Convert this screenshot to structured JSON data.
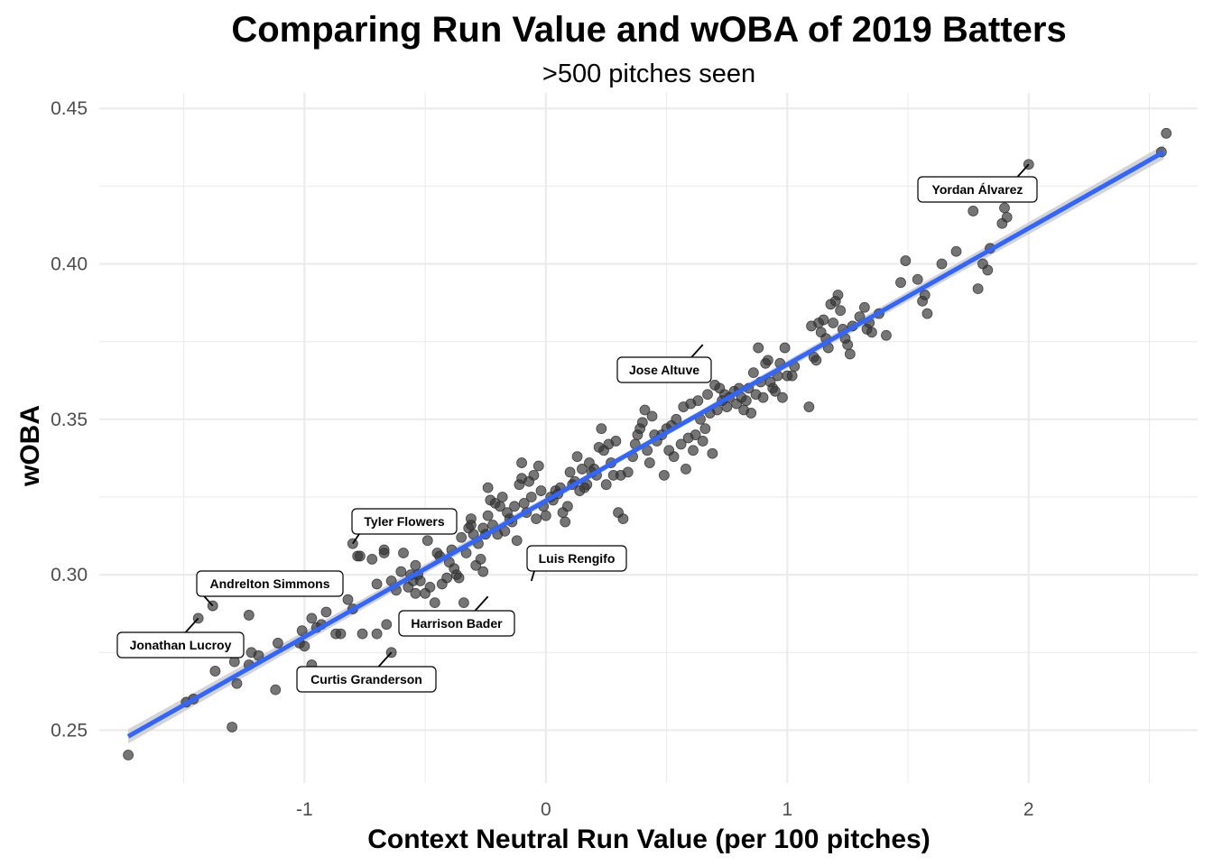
{
  "chart_data": {
    "type": "scatter",
    "title": "Comparing Run Value and wOBA of 2019 Batters",
    "subtitle": ">500 pitches seen",
    "xlabel": "Context Neutral Run Value (per 100 pitches)",
    "ylabel": "wOBA",
    "xlim": [
      -1.85,
      2.7
    ],
    "ylim": [
      0.233,
      0.455
    ],
    "x_ticks": [
      -1,
      0,
      1,
      2
    ],
    "x_tick_labels": [
      "-1",
      "0",
      "1",
      "2"
    ],
    "y_ticks": [
      0.25,
      0.3,
      0.35,
      0.4,
      0.45
    ],
    "y_tick_labels": [
      "0.25",
      "0.30",
      "0.35",
      "0.40",
      "0.45"
    ],
    "grid": true,
    "point_color": "#333333",
    "trend_color": "#3366FF",
    "band_color": "#cccccc",
    "trend": {
      "type": "linear",
      "x": [
        -1.73,
        2.56
      ],
      "y": [
        0.248,
        0.436
      ]
    },
    "points": [
      [
        -1.73,
        0.242
      ],
      [
        -1.49,
        0.259
      ],
      [
        -1.46,
        0.26
      ],
      [
        -1.44,
        0.286
      ],
      [
        -1.38,
        0.29
      ],
      [
        -1.37,
        0.269
      ],
      [
        -1.3,
        0.251
      ],
      [
        -1.29,
        0.272
      ],
      [
        -1.28,
        0.265
      ],
      [
        -1.23,
        0.287
      ],
      [
        -1.23,
        0.271
      ],
      [
        -1.22,
        0.275
      ],
      [
        -1.19,
        0.274
      ],
      [
        -1.12,
        0.263
      ],
      [
        -1.11,
        0.278
      ],
      [
        -1.02,
        0.278
      ],
      [
        -1.01,
        0.282
      ],
      [
        -1.0,
        0.277
      ],
      [
        -0.97,
        0.271
      ],
      [
        -0.97,
        0.286
      ],
      [
        -0.95,
        0.283
      ],
      [
        -0.93,
        0.284
      ],
      [
        -0.91,
        0.288
      ],
      [
        -0.87,
        0.281
      ],
      [
        -0.85,
        0.281
      ],
      [
        -0.82,
        0.292
      ],
      [
        -0.8,
        0.289
      ],
      [
        -0.8,
        0.31
      ],
      [
        -0.78,
        0.306
      ],
      [
        -0.77,
        0.306
      ],
      [
        -0.76,
        0.281
      ],
      [
        -0.72,
        0.305
      ],
      [
        -0.7,
        0.297
      ],
      [
        -0.7,
        0.281
      ],
      [
        -0.67,
        0.308
      ],
      [
        -0.67,
        0.307
      ],
      [
        -0.66,
        0.284
      ],
      [
        -0.64,
        0.298
      ],
      [
        -0.64,
        0.275
      ],
      [
        -0.62,
        0.295
      ],
      [
        -0.6,
        0.301
      ],
      [
        -0.59,
        0.307
      ],
      [
        -0.57,
        0.296
      ],
      [
        -0.56,
        0.3
      ],
      [
        -0.55,
        0.298
      ],
      [
        -0.54,
        0.294
      ],
      [
        -0.54,
        0.303
      ],
      [
        -0.53,
        0.3
      ],
      [
        -0.52,
        0.298
      ],
      [
        -0.5,
        0.294
      ],
      [
        -0.49,
        0.311
      ],
      [
        -0.48,
        0.296
      ],
      [
        -0.46,
        0.291
      ],
      [
        -0.45,
        0.307
      ],
      [
        -0.44,
        0.306
      ],
      [
        -0.43,
        0.297
      ],
      [
        -0.41,
        0.299
      ],
      [
        -0.4,
        0.304
      ],
      [
        -0.39,
        0.308
      ],
      [
        -0.38,
        0.302
      ],
      [
        -0.37,
        0.3
      ],
      [
        -0.36,
        0.299
      ],
      [
        -0.35,
        0.312
      ],
      [
        -0.34,
        0.291
      ],
      [
        -0.33,
        0.307
      ],
      [
        -0.32,
        0.315
      ],
      [
        -0.31,
        0.316
      ],
      [
        -0.31,
        0.318
      ],
      [
        -0.3,
        0.313
      ],
      [
        -0.29,
        0.303
      ],
      [
        -0.28,
        0.31
      ],
      [
        -0.27,
        0.305
      ],
      [
        -0.26,
        0.301
      ],
      [
        -0.26,
        0.315
      ],
      [
        -0.25,
        0.313
      ],
      [
        -0.24,
        0.319
      ],
      [
        -0.24,
        0.328
      ],
      [
        -0.23,
        0.324
      ],
      [
        -0.22,
        0.316
      ],
      [
        -0.21,
        0.323
      ],
      [
        -0.2,
        0.313
      ],
      [
        -0.19,
        0.322
      ],
      [
        -0.18,
        0.325
      ],
      [
        -0.17,
        0.314
      ],
      [
        -0.16,
        0.32
      ],
      [
        -0.15,
        0.318
      ],
      [
        -0.14,
        0.317
      ],
      [
        -0.13,
        0.322
      ],
      [
        -0.12,
        0.311
      ],
      [
        -0.11,
        0.329
      ],
      [
        -0.1,
        0.331
      ],
      [
        -0.1,
        0.336
      ],
      [
        -0.09,
        0.323
      ],
      [
        -0.08,
        0.32
      ],
      [
        -0.07,
        0.33
      ],
      [
        -0.06,
        0.325
      ],
      [
        -0.05,
        0.332
      ],
      [
        -0.04,
        0.318
      ],
      [
        -0.03,
        0.335
      ],
      [
        -0.02,
        0.327
      ],
      [
        -0.01,
        0.322
      ],
      [
        0.0,
        0.319
      ],
      [
        0.02,
        0.325
      ],
      [
        0.03,
        0.324
      ],
      [
        0.04,
        0.327
      ],
      [
        0.05,
        0.326
      ],
      [
        0.06,
        0.328
      ],
      [
        0.07,
        0.32
      ],
      [
        0.08,
        0.317
      ],
      [
        0.09,
        0.322
      ],
      [
        0.1,
        0.333
      ],
      [
        0.11,
        0.329
      ],
      [
        0.12,
        0.33
      ],
      [
        0.13,
        0.338
      ],
      [
        0.14,
        0.327
      ],
      [
        0.15,
        0.334
      ],
      [
        0.16,
        0.328
      ],
      [
        0.17,
        0.329
      ],
      [
        0.18,
        0.336
      ],
      [
        0.19,
        0.333
      ],
      [
        0.2,
        0.334
      ],
      [
        0.21,
        0.332
      ],
      [
        0.22,
        0.341
      ],
      [
        0.23,
        0.347
      ],
      [
        0.24,
        0.34
      ],
      [
        0.25,
        0.329
      ],
      [
        0.26,
        0.342
      ],
      [
        0.27,
        0.336
      ],
      [
        0.28,
        0.332
      ],
      [
        0.29,
        0.343
      ],
      [
        0.3,
        0.32
      ],
      [
        0.31,
        0.332
      ],
      [
        0.32,
        0.318
      ],
      [
        0.34,
        0.333
      ],
      [
        0.36,
        0.338
      ],
      [
        0.37,
        0.342
      ],
      [
        0.38,
        0.345
      ],
      [
        0.39,
        0.347
      ],
      [
        0.4,
        0.349
      ],
      [
        0.41,
        0.353
      ],
      [
        0.42,
        0.34
      ],
      [
        0.43,
        0.336
      ],
      [
        0.44,
        0.351
      ],
      [
        0.45,
        0.345
      ],
      [
        0.46,
        0.343
      ],
      [
        0.48,
        0.345
      ],
      [
        0.49,
        0.332
      ],
      [
        0.5,
        0.347
      ],
      [
        0.51,
        0.34
      ],
      [
        0.52,
        0.348
      ],
      [
        0.53,
        0.338
      ],
      [
        0.54,
        0.35
      ],
      [
        0.56,
        0.342
      ],
      [
        0.57,
        0.354
      ],
      [
        0.58,
        0.334
      ],
      [
        0.59,
        0.344
      ],
      [
        0.6,
        0.355
      ],
      [
        0.61,
        0.34
      ],
      [
        0.62,
        0.345
      ],
      [
        0.63,
        0.356
      ],
      [
        0.64,
        0.35
      ],
      [
        0.65,
        0.343
      ],
      [
        0.66,
        0.347
      ],
      [
        0.67,
        0.358
      ],
      [
        0.68,
        0.352
      ],
      [
        0.69,
        0.339
      ],
      [
        0.7,
        0.361
      ],
      [
        0.71,
        0.353
      ],
      [
        0.72,
        0.36
      ],
      [
        0.73,
        0.356
      ],
      [
        0.74,
        0.358
      ],
      [
        0.75,
        0.354
      ],
      [
        0.76,
        0.357
      ],
      [
        0.78,
        0.359
      ],
      [
        0.79,
        0.355
      ],
      [
        0.8,
        0.36
      ],
      [
        0.81,
        0.357
      ],
      [
        0.82,
        0.353
      ],
      [
        0.83,
        0.356
      ],
      [
        0.84,
        0.36
      ],
      [
        0.85,
        0.352
      ],
      [
        0.86,
        0.365
      ],
      [
        0.87,
        0.358
      ],
      [
        0.88,
        0.373
      ],
      [
        0.89,
        0.362
      ],
      [
        0.9,
        0.357
      ],
      [
        0.91,
        0.368
      ],
      [
        0.92,
        0.369
      ],
      [
        0.93,
        0.362
      ],
      [
        0.94,
        0.36
      ],
      [
        0.95,
        0.359
      ],
      [
        0.96,
        0.364
      ],
      [
        0.97,
        0.368
      ],
      [
        0.98,
        0.357
      ],
      [
        0.99,
        0.373
      ],
      [
        1.0,
        0.364
      ],
      [
        1.02,
        0.364
      ],
      [
        1.03,
        0.367
      ],
      [
        1.09,
        0.354
      ],
      [
        1.1,
        0.38
      ],
      [
        1.11,
        0.37
      ],
      [
        1.12,
        0.369
      ],
      [
        1.13,
        0.381
      ],
      [
        1.14,
        0.378
      ],
      [
        1.15,
        0.382
      ],
      [
        1.16,
        0.376
      ],
      [
        1.17,
        0.373
      ],
      [
        1.18,
        0.387
      ],
      [
        1.19,
        0.381
      ],
      [
        1.2,
        0.388
      ],
      [
        1.21,
        0.39
      ],
      [
        1.22,
        0.385
      ],
      [
        1.23,
        0.379
      ],
      [
        1.24,
        0.376
      ],
      [
        1.25,
        0.374
      ],
      [
        1.26,
        0.371
      ],
      [
        1.27,
        0.38
      ],
      [
        1.3,
        0.383
      ],
      [
        1.32,
        0.386
      ],
      [
        1.33,
        0.379
      ],
      [
        1.34,
        0.381
      ],
      [
        1.35,
        0.378
      ],
      [
        1.38,
        0.384
      ],
      [
        1.41,
        0.377
      ],
      [
        1.47,
        0.394
      ],
      [
        1.49,
        0.401
      ],
      [
        1.54,
        0.395
      ],
      [
        1.56,
        0.388
      ],
      [
        1.57,
        0.39
      ],
      [
        1.58,
        0.384
      ],
      [
        1.64,
        0.4
      ],
      [
        1.7,
        0.404
      ],
      [
        1.77,
        0.417
      ],
      [
        1.79,
        0.392
      ],
      [
        1.81,
        0.4
      ],
      [
        1.83,
        0.398
      ],
      [
        1.84,
        0.405
      ],
      [
        1.89,
        0.413
      ],
      [
        1.9,
        0.418
      ],
      [
        1.91,
        0.415
      ],
      [
        2.0,
        0.432
      ],
      [
        2.55,
        0.436
      ],
      [
        2.57,
        0.442
      ]
    ],
    "annotations": [
      {
        "text": "Yordan Álvarez",
        "x": 2.0,
        "y": 0.432
      },
      {
        "text": "Jose Altuve",
        "x": 0.65,
        "y": 0.374
      },
      {
        "text": "Tyler Flowers",
        "x": -0.8,
        "y": 0.31
      },
      {
        "text": "Luis Rengifo",
        "x": -0.06,
        "y": 0.298
      },
      {
        "text": "Andrelton Simmons",
        "x": -1.38,
        "y": 0.29
      },
      {
        "text": "Harrison Bader",
        "x": -0.24,
        "y": 0.293
      },
      {
        "text": "Jonathan Lucroy",
        "x": -1.44,
        "y": 0.286
      },
      {
        "text": "Curtis Granderson",
        "x": -0.64,
        "y": 0.275
      }
    ]
  }
}
